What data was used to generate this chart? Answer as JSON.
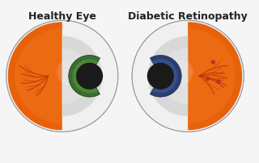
{
  "bg_color": "#f5f5f5",
  "title_left": "Healthy Eye",
  "title_right": "Diabetic Retinopathy",
  "title_fontsize": 9,
  "title_fontweight": "bold",
  "eye_outer_color": "#e8e8e8",
  "retina_orange": "#e8610a",
  "retina_orange_edge": "#c44a00",
  "retina_light_orange": "#f07820",
  "vessel_color": "#b83000",
  "sclera_white": "#dcdcdc",
  "sclera_light": "#f0f0f0",
  "iris_green": "#3a6e30",
  "iris_green_light": "#5a9e40",
  "iris_dark_rim": "#1a3010",
  "iris_blue": "#2a3f6e",
  "iris_blue_light": "#4a6aae",
  "iris_blue_dark": "#1a2a4e",
  "pupil_color": "#1a1a1a",
  "lesion_color": "#aa3030",
  "shadow_color": "#333333"
}
